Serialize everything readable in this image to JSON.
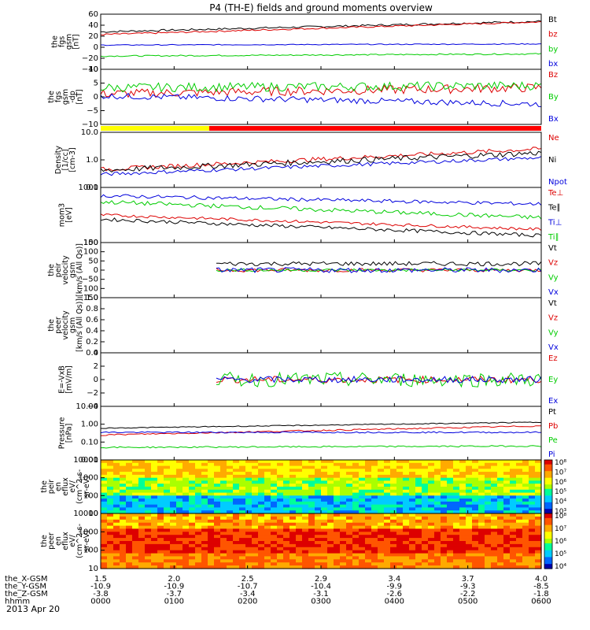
{
  "figure": {
    "title": "P4 (TH-E) fields and ground moments overview",
    "date_label": "2013 Apr 20"
  },
  "orbit": {
    "rows": [
      {
        "label": "the_X-GSM",
        "values": [
          "1.5",
          "2.0",
          "2.5",
          "2.9",
          "3.4",
          "3.7",
          "4.0"
        ]
      },
      {
        "label": "the_Y-GSM",
        "values": [
          "-10.9",
          "-10.9",
          "-10.7",
          "-10.4",
          "-9.9",
          "-9.3",
          "-8.5"
        ]
      },
      {
        "label": "the_Z-GSM",
        "values": [
          "-3.8",
          "-3.7",
          "-3.4",
          "-3.1",
          "-2.6",
          "-2.2",
          "-1.8"
        ]
      },
      {
        "label": "hhmm",
        "values": [
          "0000",
          "0100",
          "0200",
          "0300",
          "0400",
          "0500",
          "0600"
        ]
      }
    ]
  },
  "colorbars": {
    "ion": {
      "labels": [
        "10⁸",
        "10⁷",
        "10⁶",
        "10⁵",
        "10⁴",
        "10³"
      ]
    },
    "electron": {
      "labels": [
        "10⁸",
        "10⁷",
        "10⁶",
        "10⁵",
        "10⁴"
      ]
    }
  },
  "chart_data": [
    {
      "id": "p1",
      "type": "line",
      "ylabel": [
        "the",
        "fgs",
        "gsm",
        "[nT]"
      ],
      "ylim": [
        -40,
        60
      ],
      "yticks": [
        "60",
        "40",
        "20",
        "0",
        "−20",
        "−40"
      ],
      "series": [
        {
          "name": "Bt",
          "color": "#000000",
          "start": 28,
          "end": 47,
          "noise": 1.8
        },
        {
          "name": "bz",
          "color": "#dd0000",
          "start": 23,
          "end": 46,
          "noise": 1.5
        },
        {
          "name": "by",
          "color": "#00cc00",
          "start": -16,
          "end": -12,
          "noise": 1.2
        },
        {
          "name": "bx",
          "color": "#0000dd",
          "start": 4,
          "end": 6,
          "noise": 0.8
        }
      ]
    },
    {
      "id": "p2",
      "type": "line",
      "ylabel": [
        "the",
        "fgs",
        "gsm",
        "-dp",
        "[nT]"
      ],
      "ylim": [
        -13,
        14
      ],
      "yticks": [
        "10",
        "5",
        "0",
        "−5",
        "−10"
      ],
      "series": [
        {
          "name": "Bz",
          "color": "#dd0000",
          "start": 2,
          "end": 5,
          "noise": 2.2
        },
        {
          "name": "By",
          "color": "#00cc00",
          "start": 5,
          "end": 6,
          "noise": 2.2
        },
        {
          "name": "Bx",
          "color": "#0000dd",
          "start": 1,
          "end": -3,
          "noise": 1.5
        }
      ]
    },
    {
      "id": "p3",
      "type": "line",
      "ylabel": [
        "Density",
        "[1/cc]",
        "[cm-3]"
      ],
      "ylim": [
        0.1,
        10
      ],
      "scale": "log",
      "yticks": [
        "10.0",
        "1.0",
        "0.1"
      ],
      "series": [
        {
          "name": "Ne",
          "color": "#dd0000",
          "start": 0.45,
          "end": 2.5,
          "noise": 0.06
        },
        {
          "name": "Ni",
          "color": "#000000",
          "start": 0.42,
          "end": 1.8,
          "noise": 0.08
        },
        {
          "name": "Npot",
          "color": "#0000dd",
          "start": 0.3,
          "end": 1.2,
          "noise": 0.05
        }
      ]
    },
    {
      "id": "p4",
      "type": "line",
      "ylabel": [
        "mom3",
        "[eV]"
      ],
      "ylim": [
        100,
        10000
      ],
      "scale": "log",
      "yticks": [
        "1000",
        "100"
      ],
      "series": [
        {
          "name": "Te⊥",
          "color": "#dd0000",
          "start": 1000,
          "end": 300,
          "noise": 0.04
        },
        {
          "name": "Te∥",
          "color": "#000000",
          "start": 700,
          "end": 180,
          "noise": 0.05
        },
        {
          "name": "Ti⊥",
          "color": "#0000dd",
          "start": 5000,
          "end": 2500,
          "noise": 0.05
        },
        {
          "name": "Ti∥",
          "color": "#00cc00",
          "start": 3000,
          "end": 800,
          "noise": 0.06
        }
      ]
    },
    {
      "id": "p5",
      "type": "line",
      "ylabel": [
        "the",
        "peir",
        "velocity",
        "gsm",
        "[km/s (All Qs)]"
      ],
      "ylim": [
        -150,
        150
      ],
      "yticks": [
        "150",
        "100",
        "50",
        "0",
        "−50",
        "−100",
        "−150"
      ],
      "start_frac": 0.26,
      "series": [
        {
          "name": "Vt",
          "color": "#000000",
          "start": 35,
          "end": 35,
          "noise": 12
        },
        {
          "name": "Vz",
          "color": "#dd0000",
          "start": 0,
          "end": 0,
          "noise": 10
        },
        {
          "name": "Vy",
          "color": "#00cc00",
          "start": 0,
          "end": 0,
          "noise": 8
        },
        {
          "name": "Vx",
          "color": "#0000dd",
          "start": 0,
          "end": 0,
          "noise": 14
        }
      ]
    },
    {
      "id": "p6",
      "type": "line",
      "ylabel": [
        "the",
        "peer",
        "velocity",
        "gsm",
        "[km/s (All Qs)]"
      ],
      "ylim": [
        0.0,
        1.0
      ],
      "yticks": [
        "1.0",
        "0.8",
        "0.6",
        "0.4",
        "0.2",
        "0.0"
      ],
      "series": [
        {
          "name": "Vt",
          "color": "#000000",
          "values": []
        },
        {
          "name": "Vz",
          "color": "#dd0000",
          "values": []
        },
        {
          "name": "Vy",
          "color": "#00cc00",
          "values": []
        },
        {
          "name": "Vx",
          "color": "#0000dd",
          "values": []
        }
      ]
    },
    {
      "id": "p7",
      "type": "line",
      "ylabel": [
        "E=-VxB",
        "[mV/m]"
      ],
      "ylim": [
        -4,
        4
      ],
      "yticks": [
        "4",
        "2",
        "0",
        "−2",
        "−4"
      ],
      "start_frac": 0.26,
      "series": [
        {
          "name": "Ez",
          "color": "#dd0000",
          "start": 0,
          "end": 0,
          "noise": 0.5
        },
        {
          "name": "Ey",
          "color": "#00cc00",
          "start": 0,
          "end": 0,
          "noise": 1.1
        },
        {
          "name": "Ex",
          "color": "#0000dd",
          "start": 0,
          "end": 0,
          "noise": 0.5
        }
      ]
    },
    {
      "id": "p8",
      "type": "line",
      "ylabel": [
        "Pressure",
        "[nPa]"
      ],
      "ylim": [
        0.01,
        10
      ],
      "scale": "log",
      "yticks": [
        "10.00",
        "1.00",
        "0.10",
        "0.01"
      ],
      "series": [
        {
          "name": "Pt",
          "color": "#000000",
          "start": 0.6,
          "end": 1.3,
          "noise": 0.02
        },
        {
          "name": "Pb",
          "color": "#dd0000",
          "start": 0.25,
          "end": 0.8,
          "noise": 0.03
        },
        {
          "name": "Pe",
          "color": "#00cc00",
          "start": 0.05,
          "end": 0.06,
          "noise": 0.03
        },
        {
          "name": "Pi",
          "color": "#0000dd",
          "start": 0.35,
          "end": 0.35,
          "noise": 0.03
        }
      ]
    },
    {
      "id": "p9",
      "type": "heatmap",
      "ylabel": [
        "the",
        "peir",
        "en",
        "eflux",
        "eV/",
        "(cm^2-s-",
        "sr-eV)"
      ],
      "ylim": [
        8,
        20000
      ],
      "scale": "log",
      "yticks": [
        "10000",
        "1000",
        "100",
        "10"
      ]
    },
    {
      "id": "p10",
      "type": "heatmap",
      "ylabel": [
        "the",
        "peer",
        "en",
        "eflux",
        "eV/",
        "(cm^2-s-",
        "sr-eV)"
      ],
      "ylim": [
        8,
        20000
      ],
      "scale": "log",
      "yticks": [
        "10000",
        "1000",
        "100",
        "10"
      ]
    }
  ]
}
